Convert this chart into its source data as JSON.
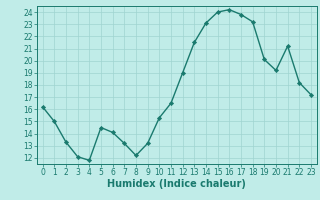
{
  "x": [
    0,
    1,
    2,
    3,
    4,
    5,
    6,
    7,
    8,
    9,
    10,
    11,
    12,
    13,
    14,
    15,
    16,
    17,
    18,
    19,
    20,
    21,
    22,
    23
  ],
  "y": [
    16.2,
    15.0,
    13.3,
    12.1,
    11.8,
    14.5,
    14.1,
    13.2,
    12.2,
    13.2,
    15.3,
    16.5,
    19.0,
    21.5,
    23.1,
    24.0,
    24.2,
    23.8,
    23.2,
    20.1,
    19.2,
    21.2,
    18.2,
    17.2
  ],
  "line_color": "#1a7a6e",
  "marker": "D",
  "markersize": 2.2,
  "linewidth": 1.0,
  "bg_color": "#c0ece8",
  "grid_color": "#9fd4d0",
  "xlabel": "Humidex (Indice chaleur)",
  "xlim": [
    -0.5,
    23.5
  ],
  "ylim": [
    11.5,
    24.5
  ],
  "yticks": [
    12,
    13,
    14,
    15,
    16,
    17,
    18,
    19,
    20,
    21,
    22,
    23,
    24
  ],
  "xticks": [
    0,
    1,
    2,
    3,
    4,
    5,
    6,
    7,
    8,
    9,
    10,
    11,
    12,
    13,
    14,
    15,
    16,
    17,
    18,
    19,
    20,
    21,
    22,
    23
  ],
  "tick_fontsize": 5.5,
  "label_fontsize": 7.0
}
